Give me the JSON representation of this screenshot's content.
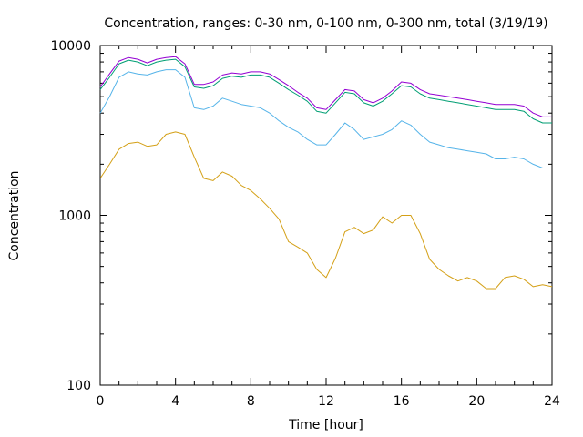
{
  "chart_data": {
    "type": "line",
    "title": "Concentration, ranges: 0-30 nm, 0-100 nm, 0-300 nm, total (3/19/19)",
    "xlabel": "Time [hour]",
    "ylabel": "Concentration",
    "xlim": [
      0,
      24
    ],
    "ylim": [
      100,
      10000
    ],
    "yscale": "log",
    "grid": false,
    "legend": "none",
    "x_ticks": [
      "0",
      "4",
      "8",
      "12",
      "16",
      "20",
      "24"
    ],
    "y_ticks": [
      "100",
      "1000",
      "10000"
    ],
    "series": [
      {
        "color": "#d4a017",
        "x": [
          0,
          0.5,
          1,
          1.5,
          2,
          2.5,
          3,
          3.5,
          4,
          4.5,
          5,
          5.5,
          6,
          6.5,
          7,
          7.5,
          8,
          8.5,
          9,
          9.5,
          10,
          10.5,
          11,
          11.5,
          12,
          12.5,
          13,
          13.5,
          14,
          14.5,
          15,
          15.5,
          16,
          16.5,
          17,
          17.5,
          18,
          18.5,
          19,
          19.5,
          20,
          20.5,
          21,
          21.5,
          22,
          22.5,
          23,
          23.5,
          24
        ],
        "values": [
          1650,
          2000,
          2450,
          2650,
          2700,
          2550,
          2600,
          3000,
          3100,
          3000,
          2200,
          1650,
          1600,
          1800,
          1700,
          1500,
          1400,
          1250,
          1100,
          950,
          700,
          650,
          600,
          480,
          430,
          560,
          800,
          850,
          780,
          820,
          980,
          900,
          1000,
          1000,
          780,
          550,
          480,
          440,
          410,
          430,
          410,
          370,
          370,
          430,
          440,
          420,
          380,
          390,
          380
        ]
      },
      {
        "color": "#56b4e9",
        "x": [
          0,
          0.5,
          1,
          1.5,
          2,
          2.5,
          3,
          3.5,
          4,
          4.5,
          5,
          5.5,
          6,
          6.5,
          7,
          7.5,
          8,
          8.5,
          9,
          9.5,
          10,
          10.5,
          11,
          11.5,
          12,
          12.5,
          13,
          13.5,
          14,
          14.5,
          15,
          15.5,
          16,
          16.5,
          17,
          17.5,
          18,
          18.5,
          19,
          19.5,
          20,
          20.5,
          21,
          21.5,
          22,
          22.5,
          23,
          23.5,
          24
        ],
        "values": [
          4000,
          5000,
          6500,
          7000,
          6800,
          6700,
          7000,
          7200,
          7200,
          6500,
          4300,
          4200,
          4400,
          4900,
          4700,
          4500,
          4400,
          4300,
          4000,
          3600,
          3300,
          3100,
          2800,
          2600,
          2600,
          3000,
          3500,
          3200,
          2800,
          2900,
          3000,
          3200,
          3600,
          3400,
          3000,
          2700,
          2600,
          2500,
          2450,
          2400,
          2350,
          2300,
          2150,
          2150,
          2200,
          2150,
          2000,
          1900,
          1900
        ]
      },
      {
        "color": "#009e73",
        "x": [
          0,
          0.5,
          1,
          1.5,
          2,
          2.5,
          3,
          3.5,
          4,
          4.5,
          5,
          5.5,
          6,
          6.5,
          7,
          7.5,
          8,
          8.5,
          9,
          9.5,
          10,
          10.5,
          11,
          11.5,
          12,
          12.5,
          13,
          13.5,
          14,
          14.5,
          15,
          15.5,
          16,
          16.5,
          17,
          17.5,
          18,
          18.5,
          19,
          19.5,
          20,
          20.5,
          21,
          21.5,
          22,
          22.5,
          23,
          23.5,
          24
        ],
        "values": [
          5500,
          6500,
          7800,
          8200,
          8000,
          7600,
          8000,
          8200,
          8300,
          7500,
          5700,
          5600,
          5800,
          6400,
          6600,
          6500,
          6700,
          6700,
          6500,
          6000,
          5500,
          5100,
          4700,
          4100,
          4000,
          4600,
          5300,
          5200,
          4600,
          4400,
          4700,
          5200,
          5800,
          5700,
          5200,
          4900,
          4800,
          4700,
          4600,
          4500,
          4400,
          4300,
          4200,
          4200,
          4200,
          4100,
          3700,
          3500,
          3500
        ]
      },
      {
        "color": "#9400d3",
        "x": [
          0,
          0.5,
          1,
          1.5,
          2,
          2.5,
          3,
          3.5,
          4,
          4.5,
          5,
          5.5,
          6,
          6.5,
          7,
          7.5,
          8,
          8.5,
          9,
          9.5,
          10,
          10.5,
          11,
          11.5,
          12,
          12.5,
          13,
          13.5,
          14,
          14.5,
          15,
          15.5,
          16,
          16.5,
          17,
          17.5,
          18,
          18.5,
          19,
          19.5,
          20,
          20.5,
          21,
          21.5,
          22,
          22.5,
          23,
          23.5,
          24
        ],
        "values": [
          5700,
          6800,
          8100,
          8500,
          8300,
          7900,
          8300,
          8500,
          8600,
          7800,
          5900,
          5900,
          6100,
          6700,
          6900,
          6800,
          7000,
          7000,
          6800,
          6300,
          5800,
          5300,
          4900,
          4300,
          4200,
          4800,
          5500,
          5400,
          4800,
          4600,
          4900,
          5400,
          6100,
          6000,
          5500,
          5200,
          5100,
          5000,
          4900,
          4800,
          4700,
          4600,
          4500,
          4500,
          4500,
          4400,
          4000,
          3800,
          3800
        ]
      }
    ]
  }
}
